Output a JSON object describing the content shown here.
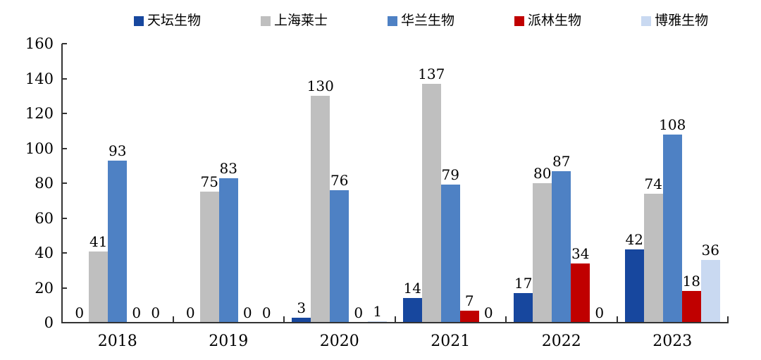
{
  "chart_data": {
    "type": "bar",
    "categories": [
      "2018",
      "2019",
      "2020",
      "2021",
      "2022",
      "2023"
    ],
    "series": [
      {
        "name": "天坛生物",
        "color": "#17479E",
        "values": [
          0,
          0,
          3,
          14,
          17,
          42
        ]
      },
      {
        "name": "上海莱士",
        "color": "#BFBFBF",
        "values": [
          41,
          75,
          130,
          137,
          80,
          74
        ]
      },
      {
        "name": "华兰生物",
        "color": "#4E81C4",
        "values": [
          93,
          83,
          76,
          79,
          87,
          108
        ]
      },
      {
        "name": "派林生物",
        "color": "#C00000",
        "values": [
          0,
          0,
          0,
          7,
          34,
          18
        ]
      },
      {
        "name": "博雅生物",
        "color": "#C9D9F1",
        "values": [
          0,
          0,
          1,
          0,
          0,
          36
        ]
      }
    ],
    "y_ticks": [
      0,
      20,
      40,
      60,
      80,
      100,
      120,
      140,
      160
    ],
    "ylim": [
      0,
      160
    ],
    "title": "",
    "xlabel": "",
    "ylabel": "",
    "grid": false,
    "legend_position": "top",
    "value_labels_shown": true,
    "axis_color": "#333333",
    "background_color": "#ffffff"
  }
}
